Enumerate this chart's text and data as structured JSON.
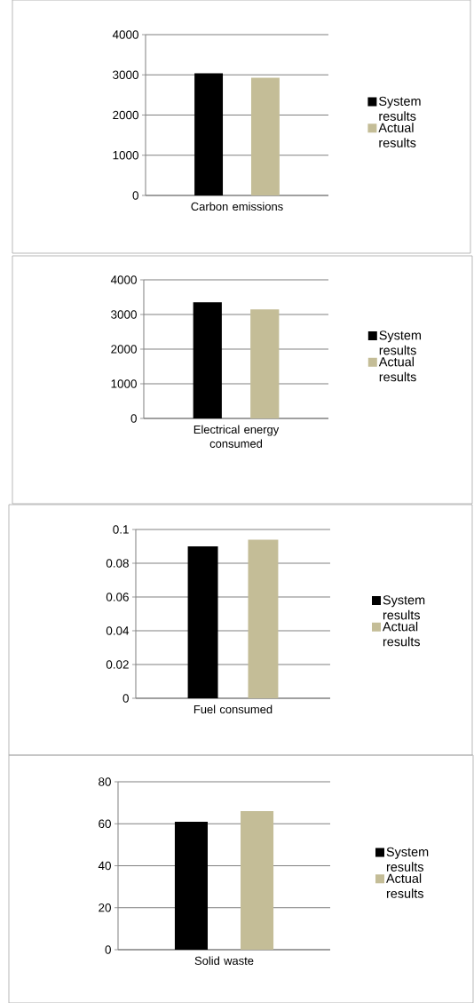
{
  "chart_data": [
    {
      "type": "bar",
      "categories": [
        "Carbon emissions"
      ],
      "series": [
        {
          "name": "System results",
          "color": "#000000",
          "values": [
            3040
          ]
        },
        {
          "name": "Actual results",
          "color": "#c4bd97",
          "values": [
            2930
          ]
        }
      ],
      "ylim": [
        0,
        4000
      ],
      "yticks": [
        0,
        1000,
        2000,
        3000,
        4000
      ],
      "grid": "y",
      "legend": "right"
    },
    {
      "type": "bar",
      "categories": [
        "Electrical energy consumed"
      ],
      "series": [
        {
          "name": "System results",
          "color": "#000000",
          "values": [
            3350
          ]
        },
        {
          "name": "Actual results",
          "color": "#c4bd97",
          "values": [
            3150
          ]
        }
      ],
      "ylim": [
        0,
        4000
      ],
      "yticks": [
        0,
        1000,
        2000,
        3000,
        4000
      ],
      "grid": "y",
      "legend": "right"
    },
    {
      "type": "bar",
      "categories": [
        "Fuel consumed"
      ],
      "series": [
        {
          "name": "System results",
          "color": "#000000",
          "values": [
            0.09
          ]
        },
        {
          "name": "Actual results",
          "color": "#c4bd97",
          "values": [
            0.094
          ]
        }
      ],
      "ylim": [
        0,
        0.1
      ],
      "yticks": [
        0,
        0.02,
        0.04,
        0.06,
        0.08,
        0.1
      ],
      "grid": "y",
      "legend": "right"
    },
    {
      "type": "bar",
      "categories": [
        "Solid waste"
      ],
      "series": [
        {
          "name": "System results",
          "color": "#000000",
          "values": [
            61
          ]
        },
        {
          "name": "Actual results",
          "color": "#c4bd97",
          "values": [
            66
          ]
        }
      ],
      "ylim": [
        0,
        80
      ],
      "yticks": [
        0,
        20,
        40,
        60,
        80
      ],
      "grid": "y",
      "legend": "right"
    }
  ]
}
